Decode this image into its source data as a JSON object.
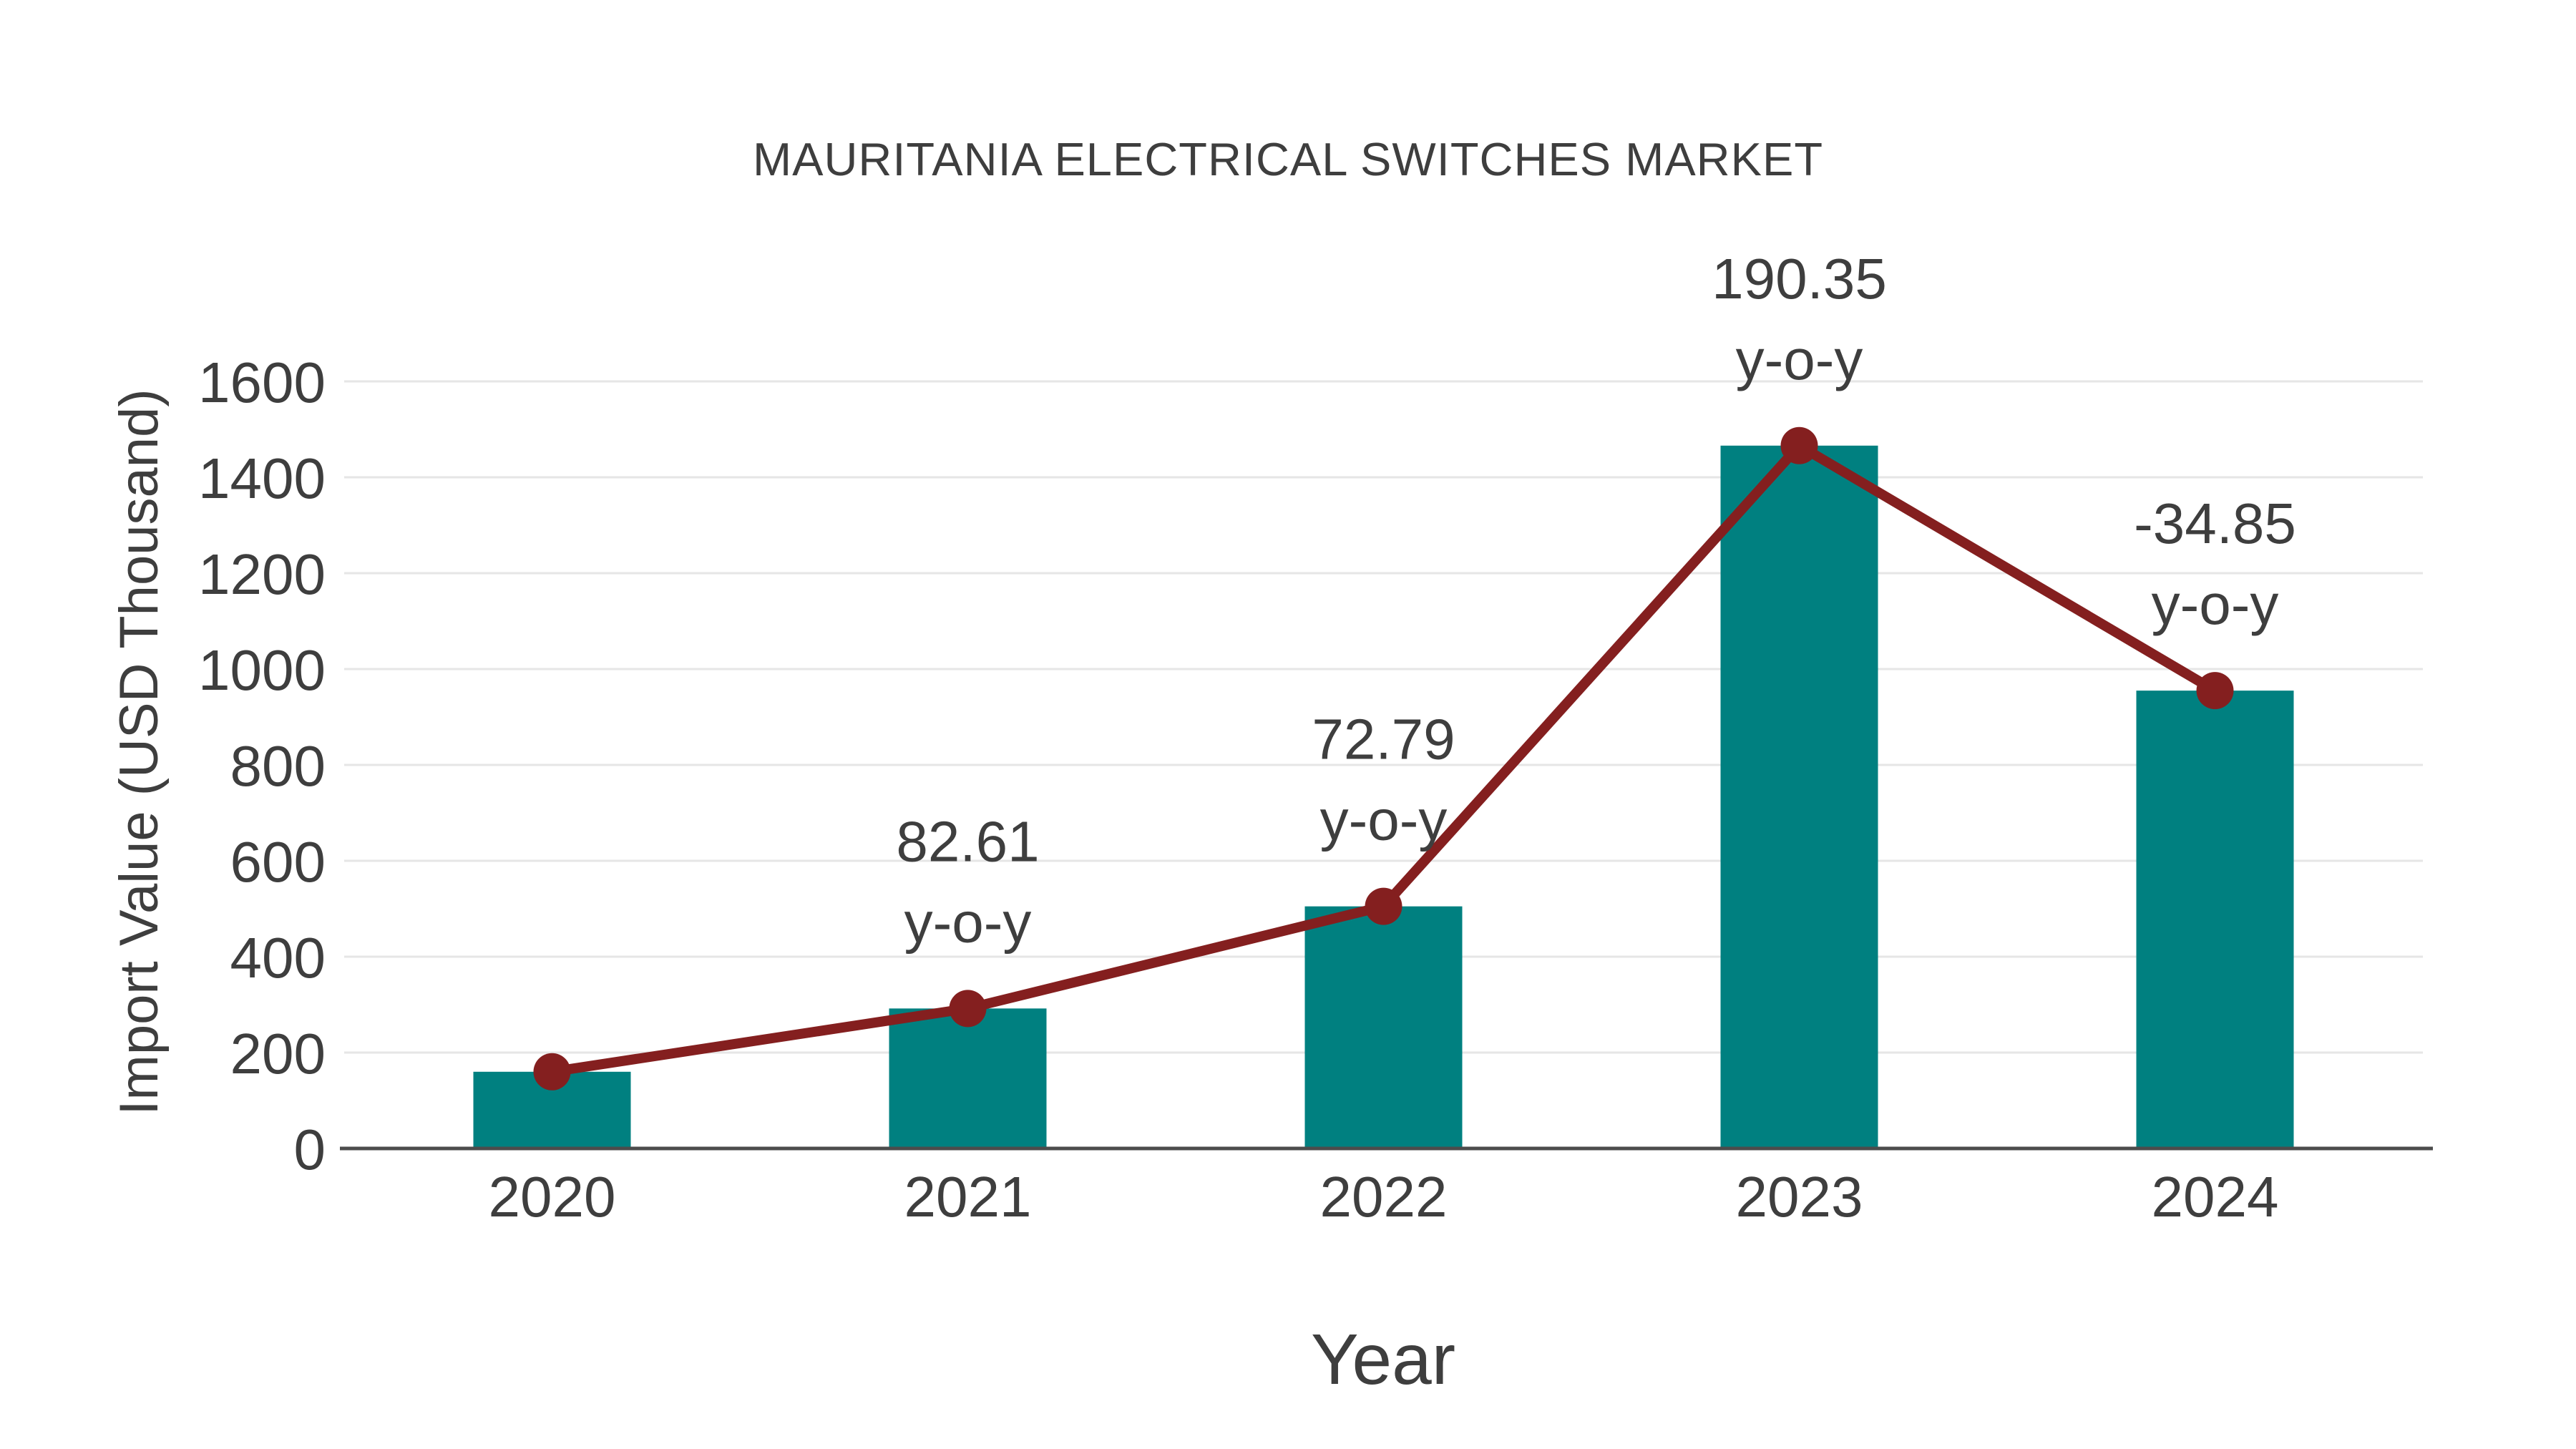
{
  "page": {
    "background": "#ffffff"
  },
  "chart_data": {
    "type": "bar",
    "title": "MAURITANIA ELECTRICAL SWITCHES MARKET",
    "xlabel": "Year",
    "ylabel": "Import Value (USD Thousand)",
    "categories": [
      "2020",
      "2021",
      "2022",
      "2023",
      "2024"
    ],
    "values": [
      160,
      292,
      505,
      1466,
      955
    ],
    "line_overlay": {
      "enabled": true,
      "values": [
        160,
        292,
        505,
        1466,
        955
      ],
      "marker": "circle"
    },
    "annotations": [
      {
        "category": "2021",
        "yoy_label": "82.61",
        "unit_label": "y-o-y"
      },
      {
        "category": "2022",
        "yoy_label": "72.79",
        "unit_label": "y-o-y"
      },
      {
        "category": "2023",
        "yoy_label": "190.35",
        "unit_label": "y-o-y"
      },
      {
        "category": "2024",
        "yoy_label": "-34.85",
        "unit_label": "y-o-y"
      }
    ],
    "yticks": [
      0,
      200,
      400,
      600,
      800,
      1000,
      1200,
      1400,
      1600
    ],
    "ylim": [
      0,
      1600
    ],
    "grid": true,
    "legend_position": "none",
    "colors": {
      "bar": "#008080",
      "line": "#841f1f",
      "text": "#3e3e3e",
      "grid": "#e6e6e6",
      "axis": "#4c4c4c"
    }
  }
}
